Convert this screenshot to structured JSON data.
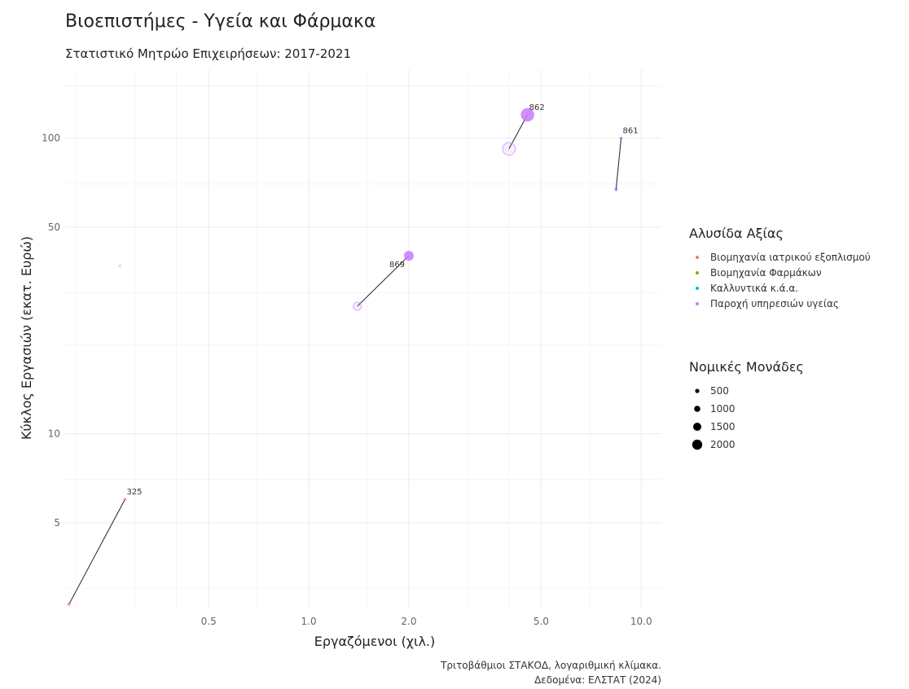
{
  "chart_data": {
    "type": "scatter",
    "title": "Βιοεπιστήμες - Υγεία και Φάρμακα",
    "subtitle": "Στατιστικό Μητρώο Επιχειρήσεων: 2017-2021",
    "xlabel": "Εργαζόμενοι (χιλ.)",
    "ylabel": "Κύκλος Εργασιών (εκατ. Ευρώ)",
    "x_scale": "log",
    "y_scale": "log",
    "xlim": [
      0.185,
      11.5
    ],
    "ylim": [
      2.55,
      170
    ],
    "x_ticks": [
      {
        "value": 0.5,
        "label": "0.5"
      },
      {
        "value": 1.0,
        "label": "1.0"
      },
      {
        "value": 2.0,
        "label": "2.0"
      },
      {
        "value": 5.0,
        "label": "5.0"
      },
      {
        "value": 10.0,
        "label": "10.0"
      }
    ],
    "y_ticks": [
      {
        "value": 5,
        "label": "5"
      },
      {
        "value": 10,
        "label": "10"
      },
      {
        "value": 50,
        "label": "50"
      },
      {
        "value": 100,
        "label": "100"
      }
    ],
    "grid": true,
    "caption": [
      "Τριτοβάθμιοι ΣΤΑΚΟΔ, λογαριθμική κλίμακα.",
      "Δεδομένα: ΕΛΣΤΑΤ (2024)"
    ],
    "color_legend": {
      "title": "Αλυσίδα Αξίας",
      "placement": "right",
      "entries": [
        {
          "label": "Βιομηχανία ιατρικού εξοπλισμού",
          "color": "#f8766d"
        },
        {
          "label": "Βιομηχανία Φαρμάκων",
          "color": "#7cae00"
        },
        {
          "label": "Καλλυντικά κ.ά.α.",
          "color": "#00bfc4"
        },
        {
          "label": "Παροχή υπηρεσιών υγείας",
          "color": "#c77cff"
        }
      ]
    },
    "size_legend": {
      "title": "Νομικές Μονάδες",
      "placement": "right",
      "entries": [
        {
          "label": "500",
          "value": 500
        },
        {
          "label": "1000",
          "value": 1000
        },
        {
          "label": "1500",
          "value": 1500
        },
        {
          "label": "2000",
          "value": 2000
        }
      ]
    },
    "series": [
      {
        "code": "325",
        "color": "#f8766d",
        "label": "325",
        "start": {
          "x": 0.19,
          "y": 2.65,
          "units": 30
        },
        "end": {
          "x": 0.28,
          "y": 6.0,
          "units": 60
        }
      },
      {
        "code": "862",
        "color": "#c77cff",
        "label": "862",
        "start": {
          "x": 4.0,
          "y": 92,
          "units": 1500
        },
        "end": {
          "x": 4.55,
          "y": 120,
          "units": 1700
        }
      },
      {
        "code": "861",
        "color": "#7b68ee",
        "label": "861",
        "start": {
          "x": 8.4,
          "y": 67,
          "units": 30
        },
        "end": {
          "x": 8.7,
          "y": 100,
          "units": 30
        }
      },
      {
        "code": "869",
        "color": "#c77cff",
        "label": "869",
        "start": {
          "x": 1.4,
          "y": 27,
          "units": 600
        },
        "end": {
          "x": 2.0,
          "y": 40,
          "units": 900
        }
      },
      {
        "code": "",
        "color": "#dddddd",
        "label": "",
        "start": {
          "x": 0.27,
          "y": 37,
          "units": 20
        },
        "end": {
          "x": 0.27,
          "y": 37,
          "units": 20
        }
      }
    ]
  }
}
